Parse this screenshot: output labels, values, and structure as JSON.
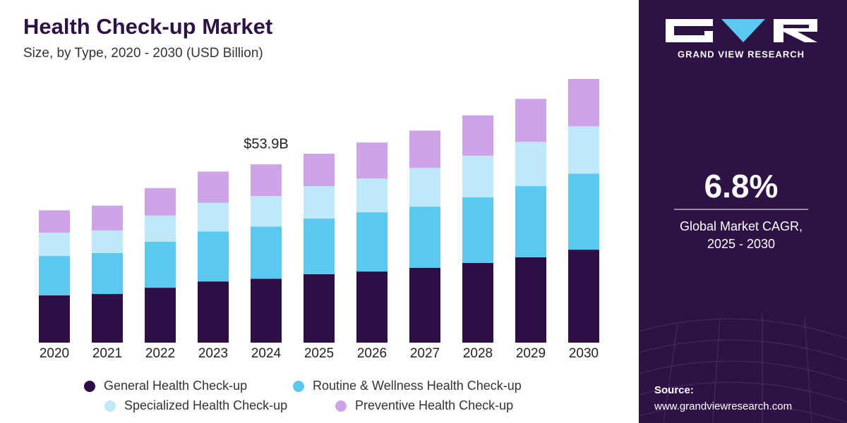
{
  "chart_data": {
    "type": "stacked-bar",
    "title": "Health Check-up Market",
    "subtitle": "Size, by Type, 2020 - 2030 (USD Billion)",
    "annotation": "$53.9B",
    "categories": [
      "2020",
      "2021",
      "2022",
      "2023",
      "2024",
      "2025",
      "2026",
      "2027",
      "2028",
      "2029",
      "2030"
    ],
    "series": [
      {
        "name": "General Health Check-up",
        "color": "#2d0f45",
        "values": [
          14.3,
          14.7,
          16.6,
          18.5,
          19.3,
          20.7,
          21.5,
          22.6,
          24.1,
          25.8,
          28.1
        ]
      },
      {
        "name": "Routine & Wellness Health Check-up",
        "color": "#5bc8f0",
        "values": [
          11.9,
          12.4,
          13.9,
          15.1,
          15.8,
          16.8,
          17.9,
          18.5,
          19.8,
          21.5,
          23.0
        ]
      },
      {
        "name": "Specialized Health Check-up",
        "color": "#bfe8f8",
        "values": [
          7.0,
          6.8,
          7.9,
          8.7,
          9.2,
          9.8,
          10.2,
          11.7,
          12.6,
          13.4,
          14.3
        ]
      },
      {
        "name": "Preventive Health Check-up",
        "color": "#cfa3e8",
        "values": [
          6.8,
          7.5,
          8.3,
          9.4,
          9.6,
          9.8,
          10.9,
          11.3,
          12.2,
          13.0,
          14.3
        ]
      }
    ]
  },
  "side_panel": {
    "brand": "GRAND VIEW RESEARCH",
    "cagr": "6.8%",
    "cagr_label_1": "Global Market CAGR,",
    "cagr_label_2": "2025 - 2030",
    "source_label": "Source:",
    "source_url": "www.grandviewresearch.com"
  }
}
